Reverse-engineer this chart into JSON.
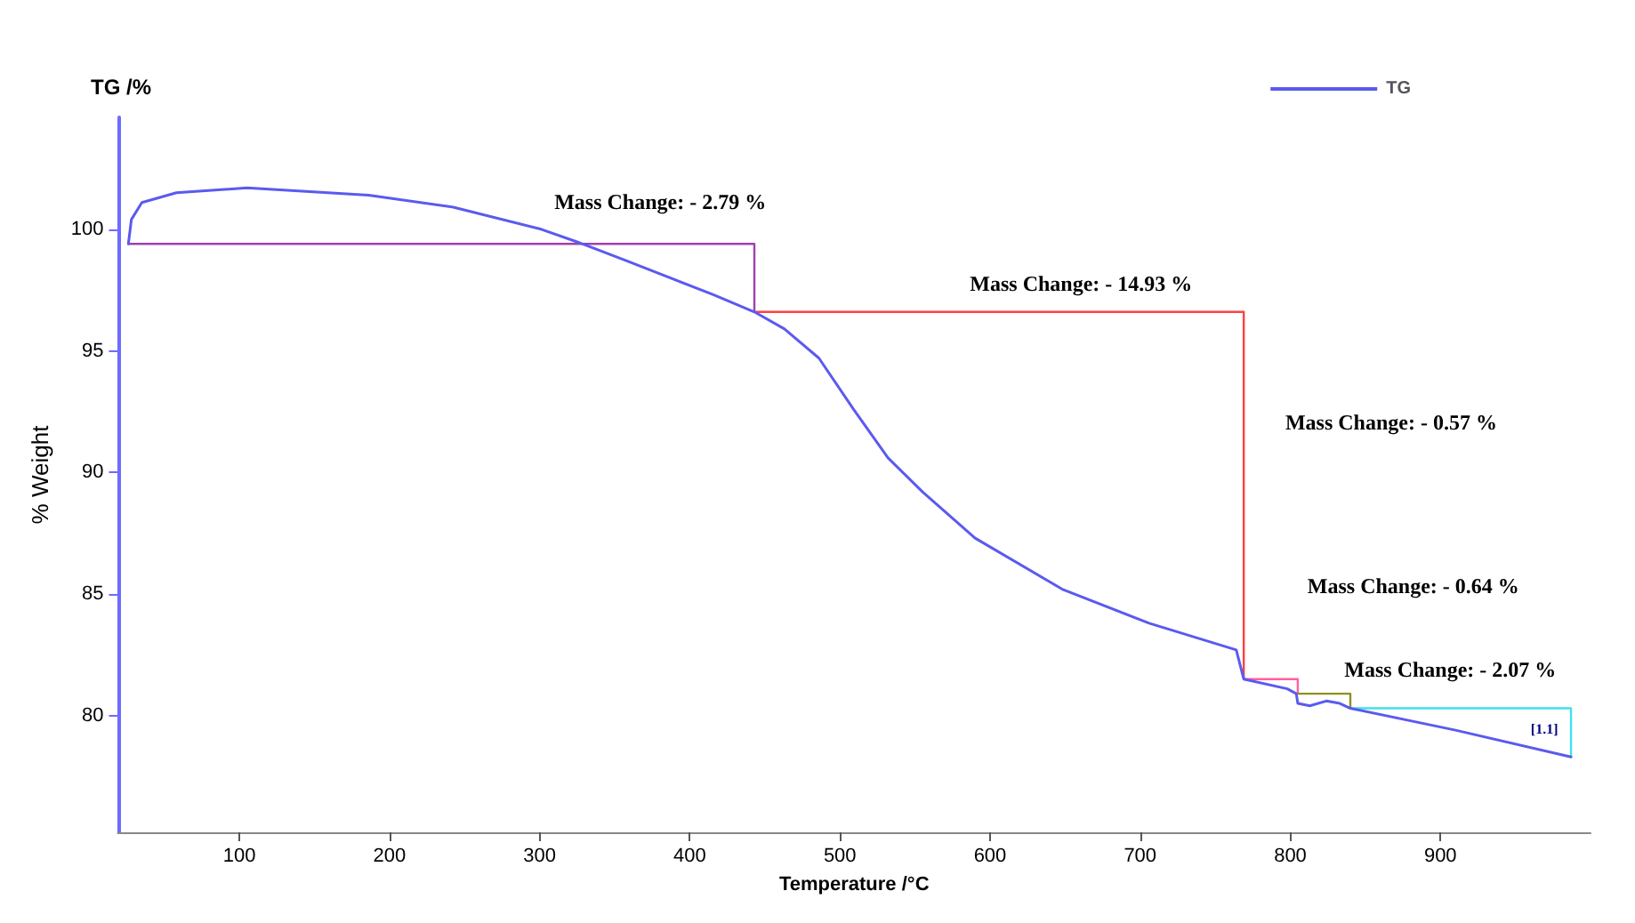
{
  "chart_data": {
    "type": "line",
    "title": "TG /%",
    "xlabel": "Temperature /°C",
    "ylabel": "% Weight",
    "xlim": [
      19,
      1000
    ],
    "xticks": [
      100,
      200,
      300,
      400,
      500,
      600,
      700,
      800,
      900
    ],
    "ylim": [
      75.2,
      104.6
    ],
    "yticks": [
      80,
      85,
      90,
      95,
      100
    ],
    "legend": "top right",
    "grid": false,
    "marker": "none",
    "line_style": "solid",
    "series": [
      {
        "name": "TG",
        "color": "#5a5af0",
        "x": [
          26,
          28,
          35,
          58,
          105,
          186,
          243,
          301,
          324,
          358,
          416,
          443,
          463,
          486,
          509,
          532,
          555,
          590,
          648,
          706,
          764,
          769,
          798,
          804,
          805,
          813,
          824,
          833,
          840,
          910,
          987
        ],
        "values": [
          99.4,
          100.4,
          101.1,
          101.5,
          101.7,
          101.4,
          100.9,
          100.0,
          99.5,
          98.7,
          97.3,
          96.6,
          95.9,
          94.7,
          92.6,
          90.6,
          89.2,
          87.3,
          85.2,
          83.8,
          82.7,
          81.5,
          81.1,
          80.9,
          80.5,
          80.4,
          80.6,
          80.5,
          80.3,
          79.4,
          78.3
        ]
      },
      {
        "color": "#a040b0",
        "x": [
          26,
          443,
          443
        ],
        "values": [
          99.4,
          99.4,
          96.6
        ]
      },
      {
        "color": "#ff4040",
        "x": [
          443,
          769,
          769
        ],
        "values": [
          96.6,
          96.6,
          81.5
        ]
      },
      {
        "color": "#ff60a0",
        "x": [
          769,
          805,
          805
        ],
        "values": [
          81.5,
          81.5,
          80.9
        ]
      },
      {
        "color": "#909020",
        "x": [
          805,
          840,
          840
        ],
        "values": [
          80.9,
          80.9,
          80.3
        ]
      },
      {
        "color": "#40e0f0",
        "x": [
          840,
          987,
          987
        ],
        "values": [
          80.3,
          80.3,
          78.3
        ]
      }
    ],
    "annotations": [
      "Mass Change: - 2.79 %",
      "Mass Change: - 14.93 %",
      "Mass Change: - 0.57 %",
      "Mass Change: - 0.64 %",
      "Mass Change: - 2.07 %",
      "[1.1]"
    ]
  }
}
